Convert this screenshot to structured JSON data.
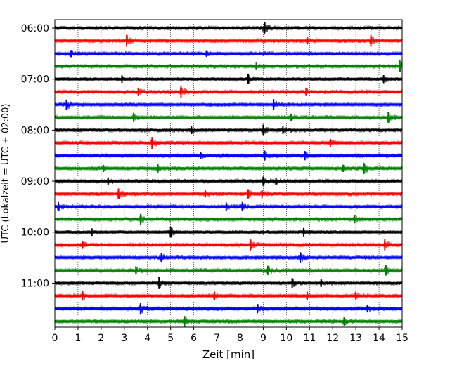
{
  "chart_data": {
    "type": "line",
    "chart_kind": "helicorder",
    "xlabel": "Zeit  [min]",
    "ylabel": "UTC (Lokalzeit = UTC + 02:00)",
    "xlim": [
      0,
      15
    ],
    "x_ticks": [
      "0",
      "1",
      "2",
      "3",
      "4",
      "5",
      "6",
      "7",
      "8",
      "9",
      "10",
      "11",
      "12",
      "13",
      "14",
      "15"
    ],
    "y_ticks": [
      "06:00",
      "07:00",
      "08:00",
      "09:00",
      "10:00",
      "11:00"
    ],
    "grid": "vertical dotted lines at each minute",
    "trace_colors": [
      "#000000",
      "#ff0000",
      "#0000ff",
      "#008000"
    ],
    "rows": [
      {
        "time": "06:00",
        "color": "#000000",
        "events": [
          {
            "x": 9.05,
            "amp": 1.0
          }
        ]
      },
      {
        "time": "06:15",
        "color": "#ff0000",
        "events": [
          {
            "x": 3.1,
            "amp": 0.9
          },
          {
            "x": 10.9,
            "amp": 0.35
          },
          {
            "x": 13.65,
            "amp": 0.9
          }
        ]
      },
      {
        "time": "06:30",
        "color": "#0000ff",
        "events": [
          {
            "x": 0.7,
            "amp": 0.35
          },
          {
            "x": 6.55,
            "amp": 0.3
          }
        ]
      },
      {
        "time": "06:45",
        "color": "#008000",
        "events": [
          {
            "x": 8.7,
            "amp": 0.4
          },
          {
            "x": 14.9,
            "amp": 0.9
          }
        ]
      },
      {
        "time": "07:00",
        "color": "#000000",
        "events": [
          {
            "x": 2.9,
            "amp": 0.4
          },
          {
            "x": 8.35,
            "amp": 0.7
          },
          {
            "x": 14.2,
            "amp": 0.45
          }
        ]
      },
      {
        "time": "07:15",
        "color": "#ff0000",
        "events": [
          {
            "x": 3.6,
            "amp": 0.5
          },
          {
            "x": 5.45,
            "amp": 1.0
          },
          {
            "x": 10.85,
            "amp": 0.5
          }
        ]
      },
      {
        "time": "07:30",
        "color": "#0000ff",
        "events": [
          {
            "x": 0.5,
            "amp": 0.7
          },
          {
            "x": 9.45,
            "amp": 0.8
          }
        ]
      },
      {
        "time": "07:45",
        "color": "#008000",
        "events": [
          {
            "x": 3.4,
            "amp": 0.6
          },
          {
            "x": 10.2,
            "amp": 0.4
          },
          {
            "x": 14.4,
            "amp": 0.8
          }
        ]
      },
      {
        "time": "08:00",
        "color": "#000000",
        "events": [
          {
            "x": 5.9,
            "amp": 0.45
          },
          {
            "x": 9.0,
            "amp": 0.8
          },
          {
            "x": 9.85,
            "amp": 0.4
          }
        ]
      },
      {
        "time": "08:15",
        "color": "#ff0000",
        "events": [
          {
            "x": 4.2,
            "amp": 0.9
          },
          {
            "x": 11.9,
            "amp": 0.45
          }
        ]
      },
      {
        "time": "08:30",
        "color": "#0000ff",
        "events": [
          {
            "x": 6.3,
            "amp": 0.35
          },
          {
            "x": 9.05,
            "amp": 0.7
          },
          {
            "x": 10.8,
            "amp": 0.6
          }
        ]
      },
      {
        "time": "08:45",
        "color": "#008000",
        "events": [
          {
            "x": 2.1,
            "amp": 0.35
          },
          {
            "x": 4.45,
            "amp": 0.5
          },
          {
            "x": 12.45,
            "amp": 0.35
          },
          {
            "x": 13.35,
            "amp": 0.8
          }
        ]
      },
      {
        "time": "09:00",
        "color": "#000000",
        "events": [
          {
            "x": 2.3,
            "amp": 0.4
          },
          {
            "x": 9.0,
            "amp": 0.6
          },
          {
            "x": 9.55,
            "amp": 0.35
          }
        ]
      },
      {
        "time": "09:15",
        "color": "#ff0000",
        "events": [
          {
            "x": 2.75,
            "amp": 0.8
          },
          {
            "x": 6.5,
            "amp": 0.35
          },
          {
            "x": 8.35,
            "amp": 0.6
          },
          {
            "x": 8.95,
            "amp": 0.5
          }
        ]
      },
      {
        "time": "09:30",
        "color": "#0000ff",
        "events": [
          {
            "x": 0.15,
            "amp": 0.6
          },
          {
            "x": 7.4,
            "amp": 0.5
          },
          {
            "x": 8.1,
            "amp": 0.6
          }
        ]
      },
      {
        "time": "09:45",
        "color": "#008000",
        "events": [
          {
            "x": 3.7,
            "amp": 0.8
          },
          {
            "x": 12.95,
            "amp": 0.45
          }
        ]
      },
      {
        "time": "10:00",
        "color": "#000000",
        "events": [
          {
            "x": 1.6,
            "amp": 0.4
          },
          {
            "x": 5.0,
            "amp": 0.8
          },
          {
            "x": 10.75,
            "amp": 0.5
          }
        ]
      },
      {
        "time": "10:15",
        "color": "#ff0000",
        "events": [
          {
            "x": 1.2,
            "amp": 0.45
          },
          {
            "x": 8.45,
            "amp": 0.8
          },
          {
            "x": 14.25,
            "amp": 0.8
          }
        ]
      },
      {
        "time": "10:30",
        "color": "#0000ff",
        "events": [
          {
            "x": 4.6,
            "amp": 0.5
          },
          {
            "x": 10.6,
            "amp": 0.8
          }
        ]
      },
      {
        "time": "10:45",
        "color": "#008000",
        "events": [
          {
            "x": 3.5,
            "amp": 0.5
          },
          {
            "x": 9.2,
            "amp": 0.6
          },
          {
            "x": 14.3,
            "amp": 0.7
          }
        ]
      },
      {
        "time": "11:00",
        "color": "#000000",
        "events": [
          {
            "x": 4.5,
            "amp": 0.9
          },
          {
            "x": 10.25,
            "amp": 0.7
          },
          {
            "x": 11.5,
            "amp": 0.45
          }
        ]
      },
      {
        "time": "11:15",
        "color": "#ff0000",
        "events": [
          {
            "x": 1.2,
            "amp": 0.6
          },
          {
            "x": 6.9,
            "amp": 0.5
          },
          {
            "x": 10.9,
            "amp": 0.5
          },
          {
            "x": 13.0,
            "amp": 0.5
          }
        ]
      },
      {
        "time": "11:30",
        "color": "#0000ff",
        "events": [
          {
            "x": 3.7,
            "amp": 0.8
          },
          {
            "x": 8.75,
            "amp": 0.6
          },
          {
            "x": 13.5,
            "amp": 0.4
          }
        ]
      },
      {
        "time": "11:45",
        "color": "#008000",
        "events": [
          {
            "x": 5.6,
            "amp": 0.8
          },
          {
            "x": 12.5,
            "amp": 0.6
          }
        ]
      }
    ]
  }
}
